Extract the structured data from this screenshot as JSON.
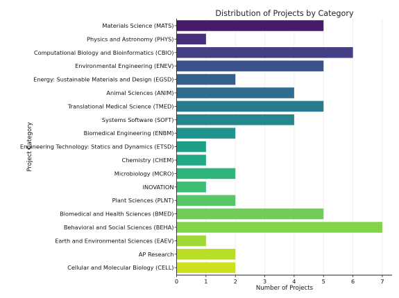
{
  "chart_data": {
    "type": "bar",
    "orientation": "horizontal",
    "title": "Distribution of Projects by Category",
    "xlabel": "Number of Projects",
    "ylabel": "Project Category",
    "xlim": [
      0,
      7.35
    ],
    "xticks": [
      0,
      1,
      2,
      3,
      4,
      5,
      6,
      7
    ],
    "grid": "vertical",
    "palette": "viridis",
    "categories": [
      "Materials Science (MATS)",
      "Physics and Astronomy (PHYS)",
      "Computational Biology and Bioinformatics (CBIO)",
      "Environmental Engineering (ENEV)",
      "Energy: Sustainable Materials and Design (EGSD)",
      "Animal Sciences (ANIM)",
      "Translational Medical Science (TMED)",
      "Systems Software (SOFT)",
      "Biomedical Engineering (ENBM)",
      "Engineering Technology: Statics and Dynamics (ETSD)",
      "Chemistry (CHEM)",
      "Microbiology (MCRO)",
      "INOVATION",
      "Plant Sciences (PLNT)",
      "Biomedical and Health Sciences (BMED)",
      "Behavioral and Social Sciences (BEHA)",
      "Earth and Environmental Sciences (EAEV)",
      "AP Research",
      "Cellular and Molecular Biology (CELL)"
    ],
    "values": [
      5,
      1,
      6,
      5,
      2,
      4,
      5,
      4,
      2,
      1,
      1,
      2,
      1,
      2,
      5,
      7,
      1,
      2,
      2
    ],
    "colors": [
      "#481a6c",
      "#472f7d",
      "#423f85",
      "#3b518b",
      "#355f8d",
      "#2f6c8e",
      "#297b8e",
      "#24878e",
      "#20938c",
      "#1f9f88",
      "#22a884",
      "#2fb47c",
      "#3fbc73",
      "#56c667",
      "#6ece58",
      "#84d44b",
      "#a0da39",
      "#bade28",
      "#cde11d"
    ]
  }
}
